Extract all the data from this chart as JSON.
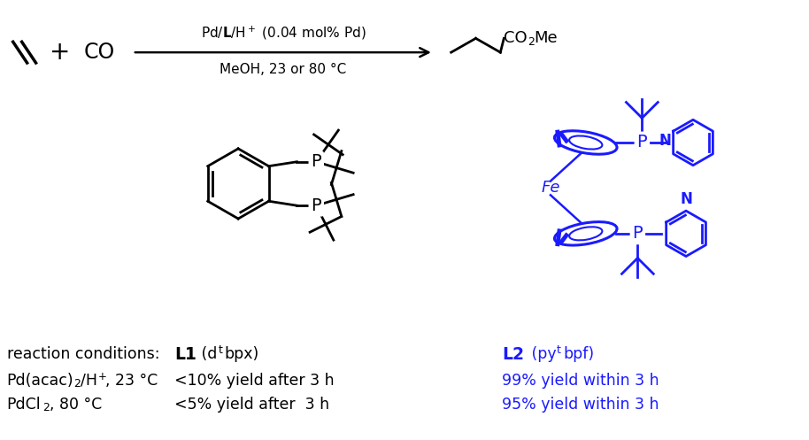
{
  "bg_color": "#ffffff",
  "black": "#000000",
  "blue": "#1a1aff",
  "figsize": [
    9.14,
    4.97
  ],
  "dpi": 100,
  "arrow_above": "Pd/L/H⁺ (0.04 mol% Pd)",
  "arrow_below": "MeOH, 23 or 80 °C",
  "cond_header": "reaction conditions:",
  "cond1_text": "Pd(acac)₂/H⁺, 23 °C",
  "cond2_text": "PdCl₂, 80 °C",
  "L1_label_bold": "L1",
  "L1_label_rest": " (d",
  "L1_label_super": "t",
  "L1_label_end": "bpx)",
  "L1_cond1": "<10% yield after 3 h",
  "L1_cond2": "<5% yield after  3 h",
  "L2_label_bold": "L2",
  "L2_label_rest": " (py",
  "L2_label_super": "t",
  "L2_label_end": "bpf)",
  "L2_cond1": "99% yield within 3 h",
  "L2_cond2": "95% yield within 3 h"
}
